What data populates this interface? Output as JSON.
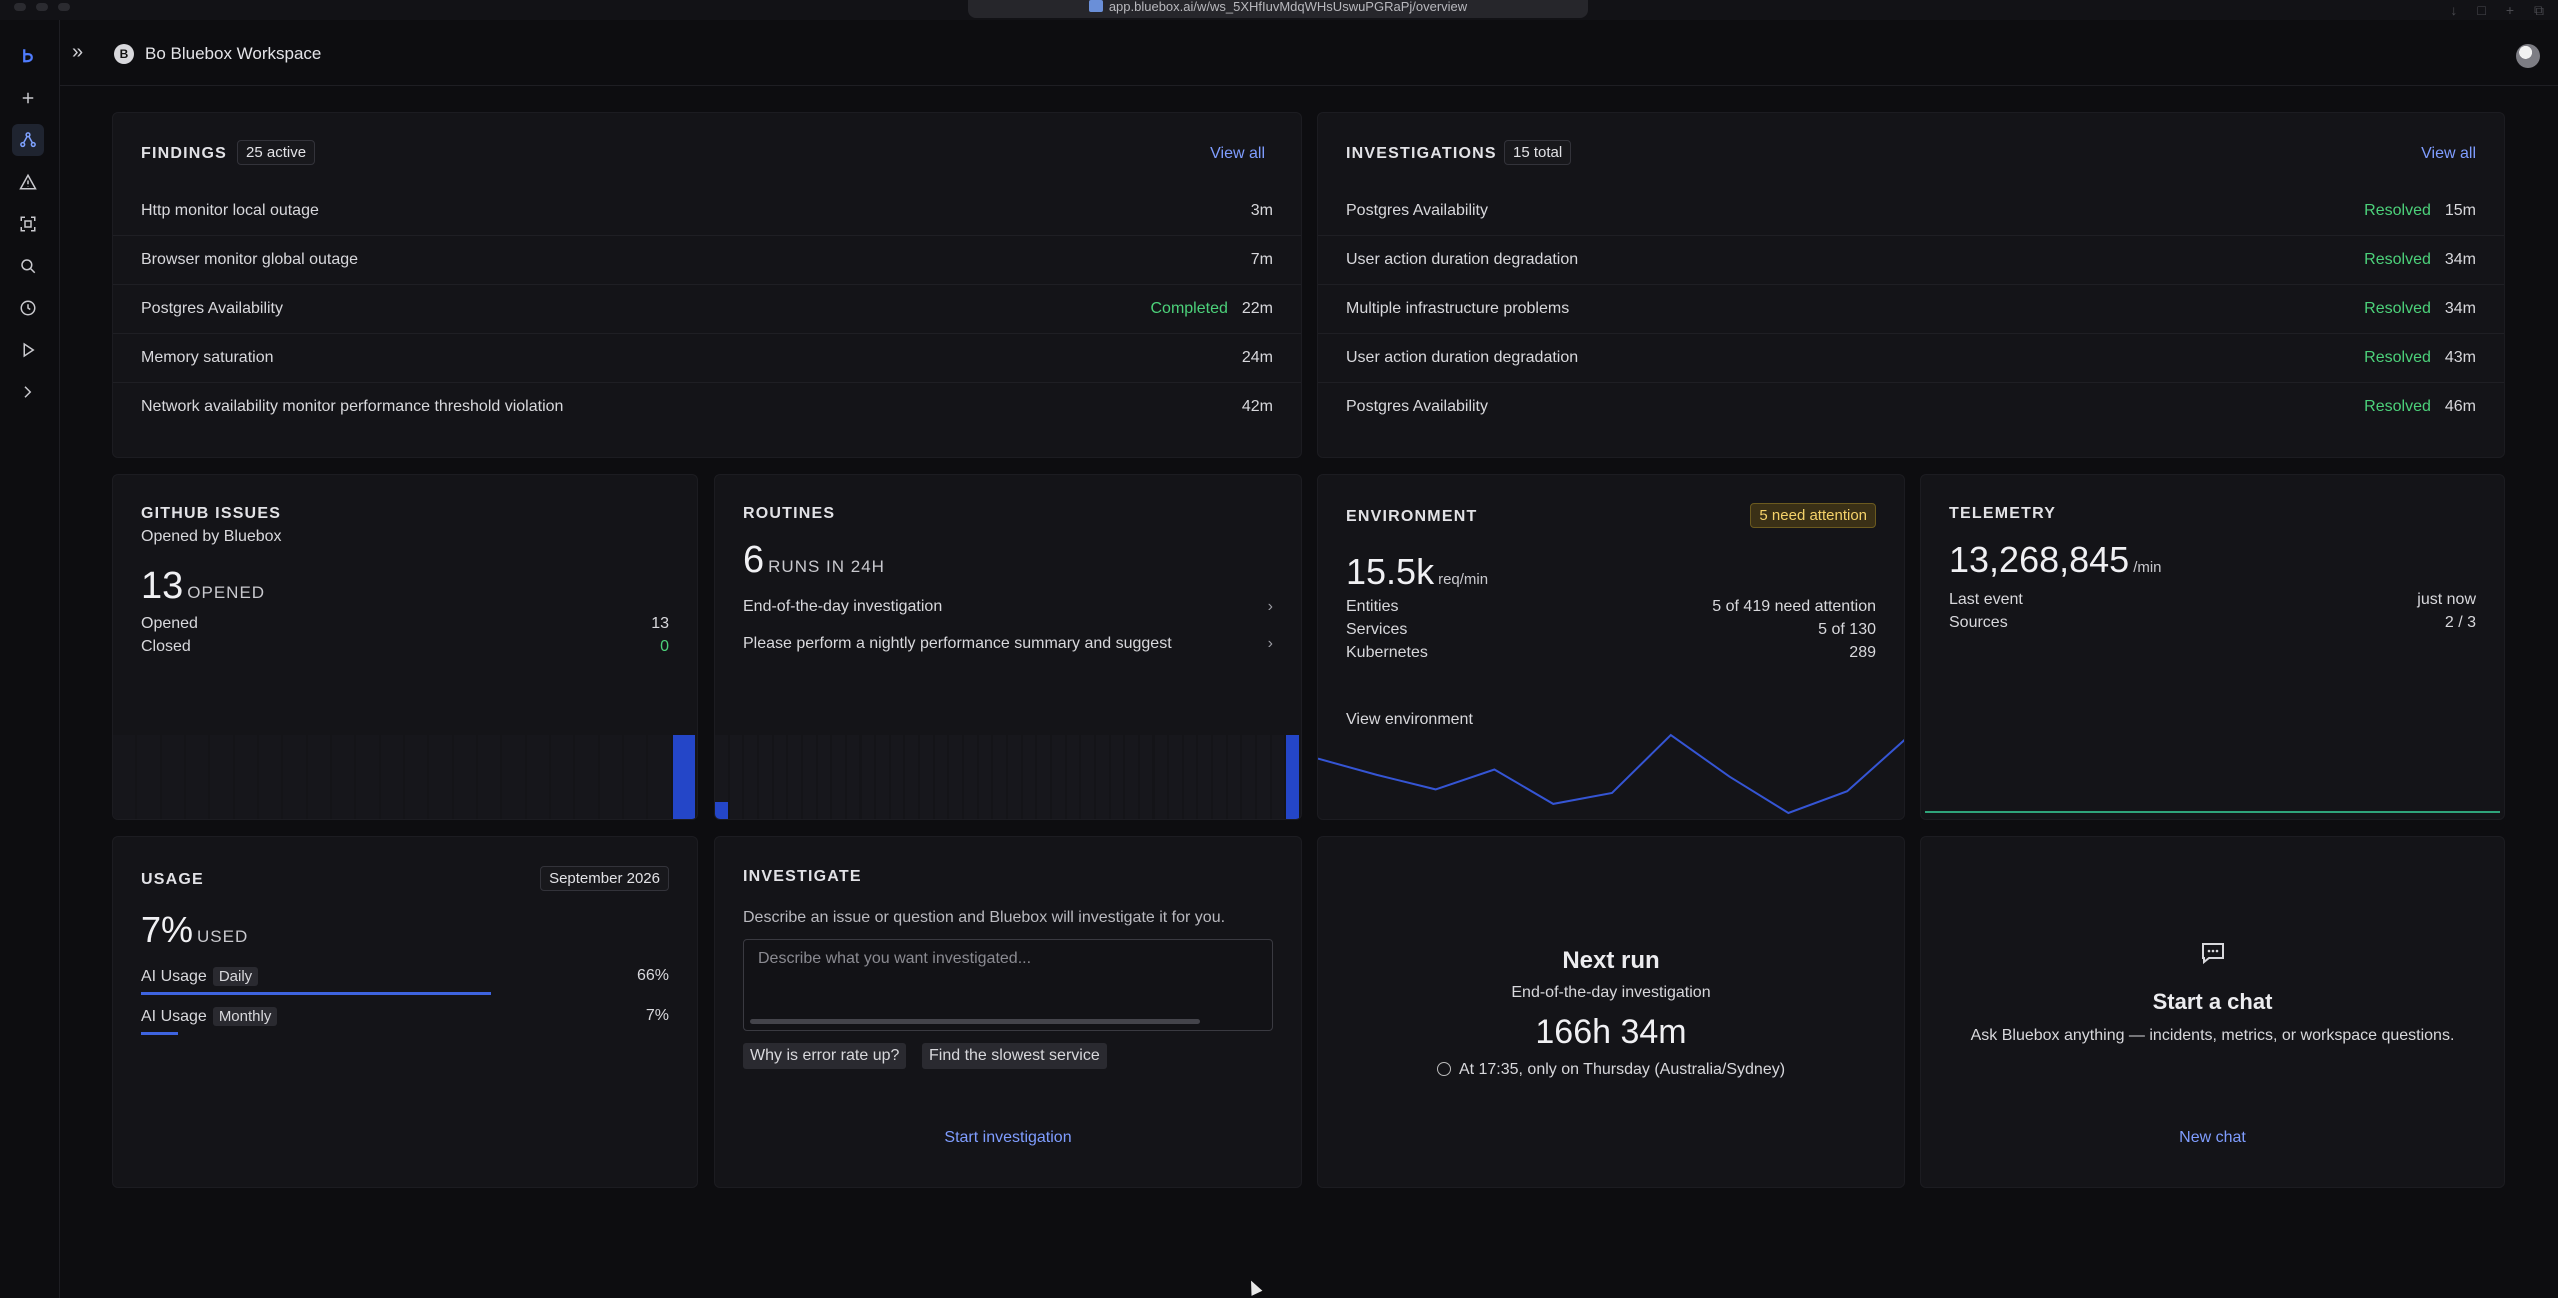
{
  "browser": {
    "url": "app.bluebox.ai/w/ws_5XHfIuvMdqWHsUswuPGRaPj/overview"
  },
  "workspace": {
    "initial": "B",
    "name": "Bo Bluebox Workspace"
  },
  "sidebar": {
    "icons": [
      "logo-icon",
      "plus-icon",
      "graph-icon",
      "alert-triangle-icon",
      "scan-icon",
      "search-icon",
      "clock-icon",
      "play-icon",
      "terminal-icon"
    ]
  },
  "findings": {
    "title": "FINDINGS",
    "badge": "25 active",
    "view_all": "View all",
    "rows": [
      {
        "name": "Http monitor local outage",
        "status": "",
        "time": "3m"
      },
      {
        "name": "Browser monitor global outage",
        "status": "",
        "time": "7m"
      },
      {
        "name": "Postgres Availability",
        "status": "Completed",
        "time": "22m"
      },
      {
        "name": "Memory saturation",
        "status": "",
        "time": "24m"
      },
      {
        "name": "Network availability monitor performance threshold violation",
        "status": "",
        "time": "42m"
      }
    ]
  },
  "investigations": {
    "title": "INVESTIGATIONS",
    "badge": "15 total",
    "view_all": "View all",
    "rows": [
      {
        "name": "Postgres Availability",
        "status": "Resolved",
        "time": "15m"
      },
      {
        "name": "User action duration degradation",
        "status": "Resolved",
        "time": "34m"
      },
      {
        "name": "Multiple infrastructure problems",
        "status": "Resolved",
        "time": "34m"
      },
      {
        "name": "User action duration degradation",
        "status": "Resolved",
        "time": "43m"
      },
      {
        "name": "Postgres Availability",
        "status": "Resolved",
        "time": "46m"
      }
    ]
  },
  "github": {
    "title": "GITHUB ISSUES",
    "subtitle": "Opened by Bluebox",
    "count": "13",
    "count_label": "OPENED",
    "opened_label": "Opened",
    "opened_value": "13",
    "closed_label": "Closed",
    "closed_value": "0",
    "bars": [
      0,
      0,
      0,
      0,
      0,
      0,
      0,
      0,
      0,
      0,
      0,
      0,
      0,
      0,
      0,
      0,
      0,
      0,
      0,
      0,
      0,
      0,
      0,
      13
    ]
  },
  "routines": {
    "title": "ROUTINES",
    "count": "6",
    "count_label": "RUNS IN 24H",
    "items": [
      {
        "label": "End-of-the-day investigation"
      },
      {
        "label": "Please perform a nightly performance summary and suggest"
      }
    ],
    "bars": [
      1,
      0,
      0,
      0,
      0,
      0,
      0,
      0,
      0,
      0,
      0,
      0,
      0,
      0,
      0,
      0,
      0,
      0,
      0,
      0,
      0,
      0,
      0,
      0,
      0,
      0,
      0,
      0,
      0,
      0,
      0,
      0,
      0,
      0,
      0,
      0,
      0,
      0,
      0,
      5
    ]
  },
  "environment": {
    "title": "ENVIRONMENT",
    "attention": "5 need attention",
    "rate": "15.5k",
    "rate_unit": "req/min",
    "rows": [
      {
        "label": "Entities",
        "value": "5 of 419 need attention"
      },
      {
        "label": "Services",
        "value": "5 of 130"
      },
      {
        "label": "Kubernetes",
        "value": "289"
      }
    ],
    "link": "View environment",
    "spark": [
      16.2,
      15.3,
      14.5,
      15.6,
      13.7,
      14.3,
      17.5,
      15.2,
      13.2,
      14.4,
      17.3
    ]
  },
  "telemetry": {
    "title": "TELEMETRY",
    "rate": "13,268,845",
    "rate_unit": "/min",
    "last_event_label": "Last event",
    "last_event_value": "just now",
    "sources_label": "Sources",
    "sources_value": "2 / 3"
  },
  "usage": {
    "title": "USAGE",
    "month": "September 2026",
    "percent": "7%",
    "percent_label": "USED",
    "rows": [
      {
        "label": "AI Usage",
        "tag": "Daily",
        "value": "66%",
        "fill": 0.66
      },
      {
        "label": "AI Usage",
        "tag": "Monthly",
        "value": "7%",
        "fill": 0.07
      }
    ]
  },
  "investigate": {
    "title": "INVESTIGATE",
    "description": "Describe an issue or question and Bluebox will investigate it for you.",
    "placeholder": "Describe what you want investigated...",
    "chips": [
      "Why is error rate up?",
      "Find the slowest service"
    ],
    "action": "Start investigation"
  },
  "next_run": {
    "title": "Next run",
    "routine": "End-of-the-day investigation",
    "countdown": "166h 34m",
    "schedule": "At 17:35, only on Thursday (Australia/Sydney)"
  },
  "chat": {
    "title": "Start a chat",
    "description": "Ask Bluebox anything — incidents, metrics, or workspace questions.",
    "action": "New chat"
  },
  "colors": {
    "accent": "#7f9dff",
    "success": "#4cd17a",
    "warning": "#f5d26a",
    "bar": "#2446c8"
  }
}
